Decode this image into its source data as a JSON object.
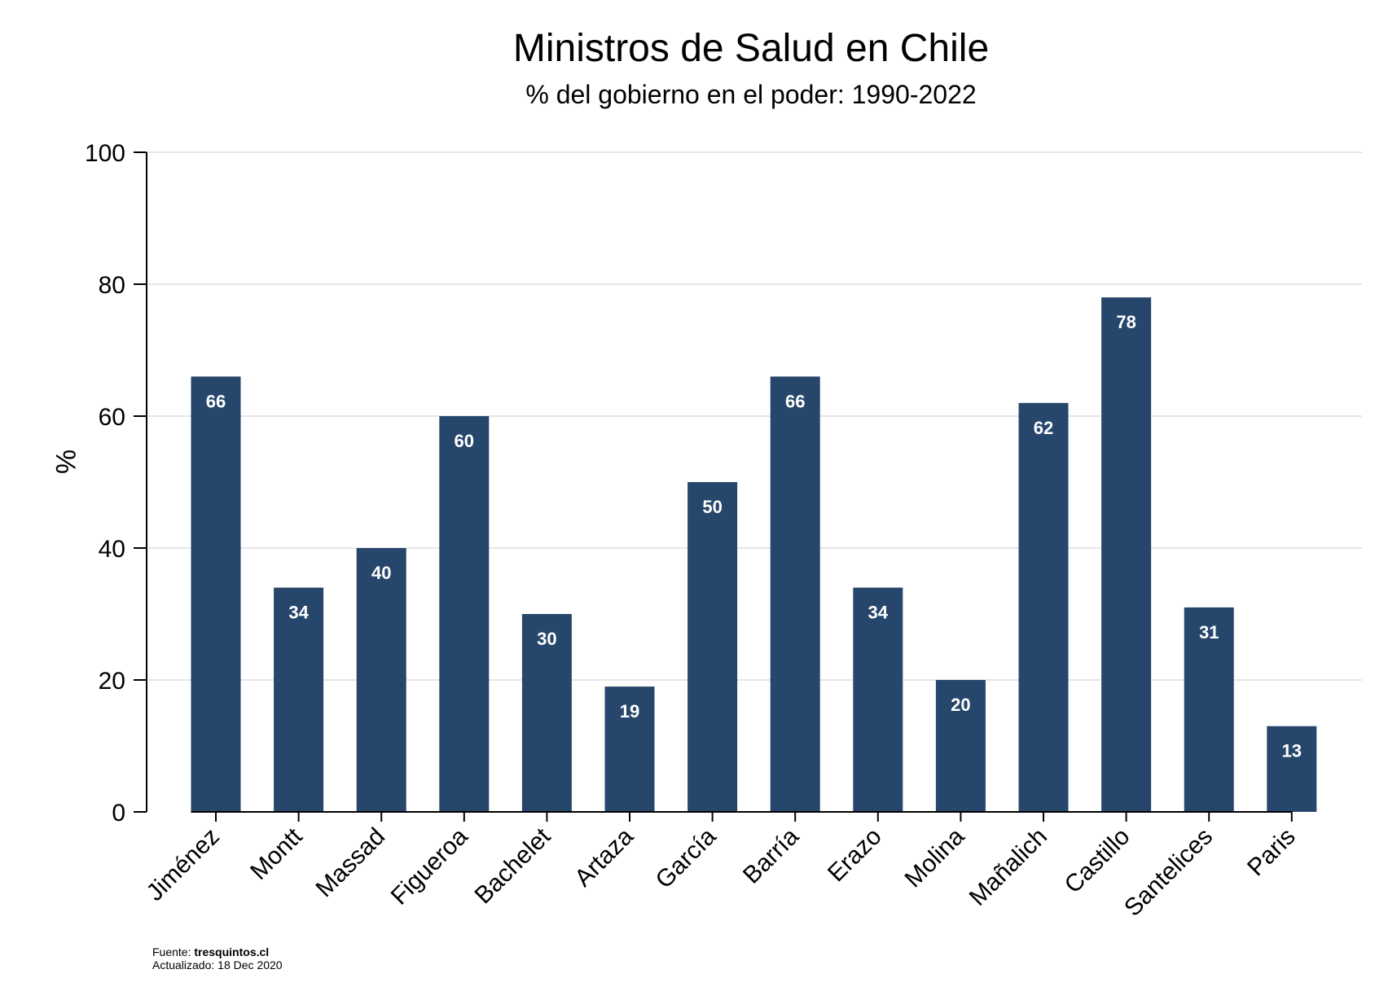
{
  "chart_data": {
    "type": "bar",
    "title": "Ministros de Salud en Chile",
    "subtitle": "% del gobierno en el poder: 1990-2022",
    "ylabel": "%",
    "xlabel": "",
    "ylim": [
      0,
      100
    ],
    "yticks": [
      "0",
      "20",
      "40",
      "60",
      "80",
      "100"
    ],
    "grid": true,
    "categories": [
      "Jiménez",
      "Montt",
      "Massad",
      "Figueroa",
      "Bachelet",
      "Artaza",
      "García",
      "Barría",
      "Erazo",
      "Molina",
      "Mañalich",
      "Castillo",
      "Santelices",
      "Paris"
    ],
    "values": [
      66,
      34,
      40,
      60,
      30,
      19,
      50,
      66,
      34,
      20,
      62,
      78,
      31,
      13
    ],
    "labels": [
      "66",
      "34",
      "40",
      "60",
      "30",
      "19",
      "50",
      "66",
      "34",
      "20",
      "62",
      "78",
      "31",
      "13"
    ],
    "bar_color": "#26476b",
    "grid_color": "#e6e6e6"
  },
  "footer": {
    "source_prefix": "Fuente: ",
    "source_name": "tresquintos.cl",
    "updated": "Actualizado: 18 Dec 2020"
  }
}
